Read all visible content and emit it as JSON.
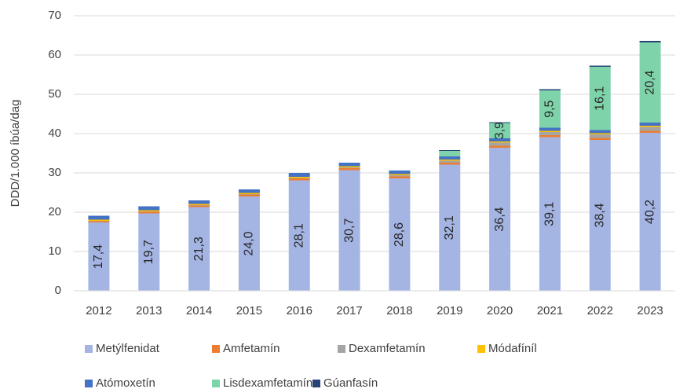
{
  "chart_data": {
    "type": "stacked_bar",
    "y_label": "DDD/1.000 íbúa/dag",
    "categories": [
      "2012",
      "2013",
      "2014",
      "2015",
      "2016",
      "2017",
      "2018",
      "2019",
      "2020",
      "2021",
      "2022",
      "2023"
    ],
    "ylim": [
      0,
      70
    ],
    "yticks": [
      0,
      10,
      20,
      30,
      40,
      50,
      60,
      70
    ],
    "grid": true,
    "series": [
      {
        "name": "Metýlfenidat",
        "color": "#a4b5e4",
        "values": [
          17.4,
          19.7,
          21.3,
          24.0,
          28.1,
          30.7,
          28.6,
          32.1,
          36.4,
          39.1,
          38.4,
          40.2
        ],
        "value_labels": [
          "17,4",
          "19,7",
          "21,3",
          "24,0",
          "28,1",
          "30,7",
          "28,6",
          "32,1",
          "36,4",
          "39,1",
          "38,4",
          "40,2"
        ]
      },
      {
        "name": "Amfetamín",
        "color": "#ed7d31",
        "values": [
          0.3,
          0.4,
          0.4,
          0.5,
          0.5,
          0.5,
          0.5,
          0.5,
          0.5,
          0.5,
          0.5,
          0.5
        ]
      },
      {
        "name": "Dexamfetamín",
        "color": "#a5a5a5",
        "values": [
          0.1,
          0.1,
          0.1,
          0.1,
          0.1,
          0.2,
          0.3,
          0.5,
          0.8,
          0.8,
          0.9,
          1.0
        ]
      },
      {
        "name": "Módafíníl",
        "color": "#ffc000",
        "values": [
          0.3,
          0.3,
          0.3,
          0.3,
          0.3,
          0.3,
          0.3,
          0.3,
          0.3,
          0.3,
          0.3,
          0.3
        ]
      },
      {
        "name": "Atómoxetín",
        "color": "#4472c4",
        "values": [
          1.0,
          1.0,
          0.9,
          0.9,
          1.0,
          0.9,
          0.9,
          0.8,
          0.8,
          0.8,
          0.8,
          0.8
        ]
      },
      {
        "name": "Lisdexamfetamín",
        "color": "#7fd3ab",
        "values": [
          null,
          null,
          null,
          null,
          null,
          null,
          null,
          1.4,
          3.9,
          9.5,
          16.1,
          20.4
        ],
        "value_labels": [
          null,
          null,
          null,
          null,
          null,
          null,
          null,
          null,
          "3,9",
          "9,5",
          "16,1",
          "20,4"
        ]
      },
      {
        "name": "Gúanfasín",
        "color": "#264478",
        "values": [
          null,
          null,
          null,
          null,
          null,
          null,
          null,
          0.2,
          0.2,
          0.3,
          0.3,
          0.4
        ]
      }
    ]
  }
}
